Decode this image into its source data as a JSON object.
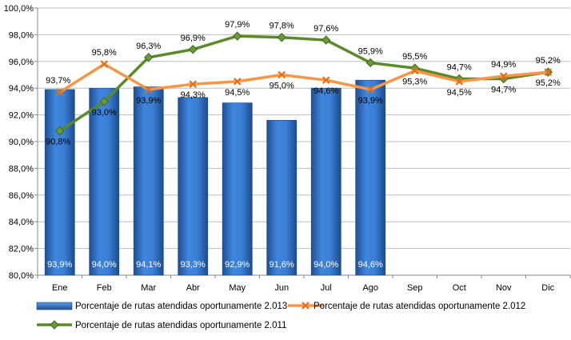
{
  "chart_data": {
    "type": "bar",
    "categories": [
      "Ene",
      "Feb",
      "Mar",
      "Abr",
      "May",
      "Jun",
      "Jul",
      "Ago",
      "Sep",
      "Oct",
      "Nov",
      "Dic"
    ],
    "ylim": [
      80,
      100
    ],
    "yticks": [
      80,
      82,
      84,
      86,
      88,
      90,
      92,
      94,
      96,
      98,
      100
    ],
    "ytick_labels": [
      "80,0%",
      "82,0%",
      "84,0%",
      "86,0%",
      "88,0%",
      "90,0%",
      "92,0%",
      "94,0%",
      "96,0%",
      "98,0%",
      "100,0%"
    ],
    "grid": true,
    "legend_position": "bottom",
    "series": [
      {
        "name": "Porcentaje de rutas atendidas oportunamente 2.013",
        "type": "bar",
        "color": "#2f6fc4",
        "values": [
          93.9,
          94.0,
          94.1,
          93.3,
          92.9,
          91.6,
          94.0,
          94.6,
          null,
          null,
          null,
          null
        ],
        "labels": [
          "93,9%",
          "94,0%",
          "94,1%",
          "93,3%",
          "92,9%",
          "91,6%",
          "94,0%",
          "94,6%",
          "",
          "",
          "",
          ""
        ]
      },
      {
        "name": "Porcentaje de rutas atendidas oportunamente 2.012",
        "type": "line",
        "color": "#f79646",
        "values": [
          93.7,
          95.8,
          93.9,
          94.3,
          94.5,
          95.0,
          94.6,
          93.9,
          95.3,
          94.5,
          94.9,
          95.2
        ],
        "labels": [
          "93,7%",
          "95,8%",
          "93,9%",
          "94,3%",
          "94,5%",
          "95,0%",
          "94,6%",
          "93,9%",
          "95,3%",
          "94,5%",
          "94,9%",
          "95,2%"
        ]
      },
      {
        "name": "Porcentaje de rutas atendidas oportunamente 2.011",
        "type": "line",
        "color": "#5b8a2a",
        "values": [
          90.8,
          93.0,
          96.3,
          96.9,
          97.9,
          97.8,
          97.6,
          95.9,
          95.5,
          94.7,
          94.7,
          95.2
        ],
        "labels": [
          "90,8%",
          "93,0%",
          "96,3%",
          "96,9%",
          "97,9%",
          "97,8%",
          "97,6%",
          "95,9%",
          "95,5%",
          "94,7%",
          "94,7%",
          "95,2%"
        ]
      }
    ]
  }
}
